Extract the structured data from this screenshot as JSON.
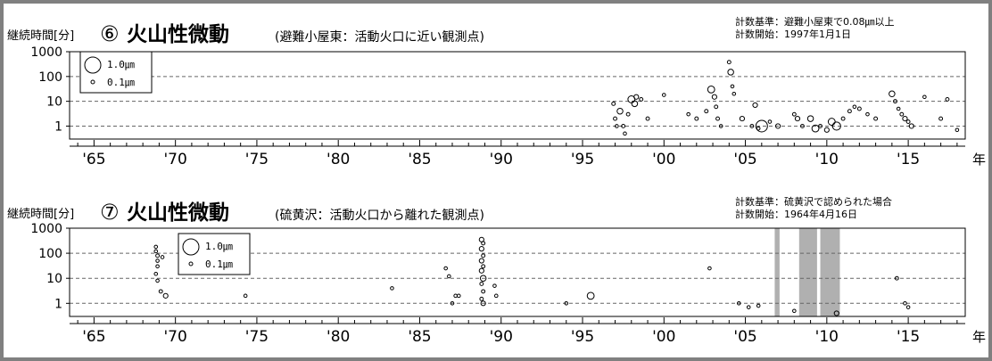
{
  "chart_data": [
    {
      "type": "scatter",
      "panel_number": "⑥",
      "title": "火山性微動",
      "subtitle": "(避難小屋東：活動火口に近い観測点)",
      "ylabel": "継続時間[分]",
      "xlabel_unit": "年",
      "note_criterion": "計数基準：避難小屋東で0.08㎛以上",
      "note_start": "計数開始：1997年1月1日",
      "legend": {
        "large": "1.0㎛",
        "small": "0.1㎛"
      },
      "yscale": "log",
      "ylim": [
        0.3,
        1000
      ],
      "yticks": [
        "1000",
        "100",
        "10",
        "1"
      ],
      "xlim": [
        1963.5,
        2018.5
      ],
      "xticks": [
        "'65",
        "'70",
        "'75",
        "'80",
        "'85",
        "'90",
        "'95",
        "'00",
        "'05",
        "'10",
        "'15"
      ],
      "grid": "dashed horizontal",
      "shaded_periods": [],
      "series": [
        {
          "marker": "circle",
          "size_meaning": "amplitude (μm)",
          "points": [
            {
              "x": 1996.9,
              "y": 8,
              "amp": 0.15
            },
            {
              "x": 1997.0,
              "y": 2,
              "amp": 0.15
            },
            {
              "x": 1997.1,
              "y": 1,
              "amp": 0.12
            },
            {
              "x": 1997.3,
              "y": 4,
              "amp": 0.25
            },
            {
              "x": 1997.5,
              "y": 1,
              "amp": 0.15
            },
            {
              "x": 1997.6,
              "y": 0.5,
              "amp": 0.12
            },
            {
              "x": 1997.8,
              "y": 3,
              "amp": 0.15
            },
            {
              "x": 1998.0,
              "y": 12,
              "amp": 0.3
            },
            {
              "x": 1998.2,
              "y": 8,
              "amp": 0.25
            },
            {
              "x": 1998.3,
              "y": 15,
              "amp": 0.2
            },
            {
              "x": 1998.6,
              "y": 12,
              "amp": 0.15
            },
            {
              "x": 1999.0,
              "y": 2,
              "amp": 0.15
            },
            {
              "x": 2000.0,
              "y": 18,
              "amp": 0.1
            },
            {
              "x": 2001.5,
              "y": 3,
              "amp": 0.12
            },
            {
              "x": 2002.0,
              "y": 2,
              "amp": 0.15
            },
            {
              "x": 2002.6,
              "y": 4,
              "amp": 0.15
            },
            {
              "x": 2002.9,
              "y": 30,
              "amp": 0.3
            },
            {
              "x": 2003.1,
              "y": 15,
              "amp": 0.2
            },
            {
              "x": 2003.2,
              "y": 6,
              "amp": 0.15
            },
            {
              "x": 2003.3,
              "y": 2,
              "amp": 0.15
            },
            {
              "x": 2003.5,
              "y": 1,
              "amp": 0.1
            },
            {
              "x": 2004.0,
              "y": 380,
              "amp": 0.15
            },
            {
              "x": 2004.1,
              "y": 150,
              "amp": 0.25
            },
            {
              "x": 2004.2,
              "y": 40,
              "amp": 0.12
            },
            {
              "x": 2004.3,
              "y": 20,
              "amp": 0.12
            },
            {
              "x": 2004.8,
              "y": 2,
              "amp": 0.2
            },
            {
              "x": 2005.4,
              "y": 1,
              "amp": 0.15
            },
            {
              "x": 2005.6,
              "y": 7,
              "amp": 0.2
            },
            {
              "x": 2005.8,
              "y": 0.8,
              "amp": 0.12
            },
            {
              "x": 2006.0,
              "y": 1,
              "amp": 0.5
            },
            {
              "x": 2006.5,
              "y": 1.5,
              "amp": 0.12
            },
            {
              "x": 2007.0,
              "y": 1,
              "amp": 0.2
            },
            {
              "x": 2008.0,
              "y": 3,
              "amp": 0.15
            },
            {
              "x": 2008.2,
              "y": 2,
              "amp": 0.2
            },
            {
              "x": 2008.5,
              "y": 1,
              "amp": 0.15
            },
            {
              "x": 2009.0,
              "y": 2,
              "amp": 0.25
            },
            {
              "x": 2009.3,
              "y": 0.8,
              "amp": 0.3
            },
            {
              "x": 2009.6,
              "y": 1,
              "amp": 0.15
            },
            {
              "x": 2010.0,
              "y": 0.7,
              "amp": 0.2
            },
            {
              "x": 2010.3,
              "y": 1.5,
              "amp": 0.3
            },
            {
              "x": 2010.6,
              "y": 1,
              "amp": 0.35
            },
            {
              "x": 2011.0,
              "y": 2,
              "amp": 0.15
            },
            {
              "x": 2011.4,
              "y": 4,
              "amp": 0.15
            },
            {
              "x": 2011.7,
              "y": 6,
              "amp": 0.12
            },
            {
              "x": 2012.0,
              "y": 5,
              "amp": 0.15
            },
            {
              "x": 2012.5,
              "y": 3,
              "amp": 0.12
            },
            {
              "x": 2013.0,
              "y": 2,
              "amp": 0.15
            },
            {
              "x": 2014.0,
              "y": 20,
              "amp": 0.25
            },
            {
              "x": 2014.2,
              "y": 10,
              "amp": 0.15
            },
            {
              "x": 2014.4,
              "y": 5,
              "amp": 0.12
            },
            {
              "x": 2014.6,
              "y": 3,
              "amp": 0.15
            },
            {
              "x": 2014.8,
              "y": 2,
              "amp": 0.2
            },
            {
              "x": 2015.0,
              "y": 1.5,
              "amp": 0.15
            },
            {
              "x": 2015.2,
              "y": 1,
              "amp": 0.2
            },
            {
              "x": 2016.0,
              "y": 15,
              "amp": 0.12
            },
            {
              "x": 2017.0,
              "y": 2,
              "amp": 0.15
            },
            {
              "x": 2017.4,
              "y": 12,
              "amp": 0.15
            },
            {
              "x": 2018.0,
              "y": 0.7,
              "amp": 0.1
            }
          ]
        }
      ]
    },
    {
      "type": "scatter",
      "panel_number": "⑦",
      "title": "火山性微動",
      "subtitle": "(硫黄沢：活動火口から離れた観測点)",
      "ylabel": "継続時間[分]",
      "xlabel_unit": "年",
      "note_criterion": "計数基準：硫黄沢で認められた場合",
      "note_start": "計数開始：1964年4月16日",
      "legend": {
        "large": "1.0㎛",
        "small": "0.1㎛"
      },
      "yscale": "log",
      "ylim": [
        0.3,
        1000
      ],
      "yticks": [
        "1000",
        "100",
        "10",
        "1"
      ],
      "xlim": [
        1963.5,
        2018.5
      ],
      "xticks": [
        "'65",
        "'70",
        "'75",
        "'80",
        "'85",
        "'90",
        "'95",
        "'00",
        "'05",
        "'10",
        "'15"
      ],
      "grid": "dashed horizontal",
      "shaded_periods": [
        [
          2006.8,
          2007.1
        ],
        [
          2008.3,
          2009.4
        ],
        [
          2009.6,
          2010.8
        ]
      ],
      "series": [
        {
          "marker": "circle",
          "size_meaning": "amplitude (μm)",
          "points": [
            {
              "x": 1968.8,
              "y": 180,
              "amp": 0.12
            },
            {
              "x": 1968.8,
              "y": 120,
              "amp": 0.12
            },
            {
              "x": 1968.9,
              "y": 80,
              "amp": 0.15
            },
            {
              "x": 1968.9,
              "y": 50,
              "amp": 0.12
            },
            {
              "x": 1968.9,
              "y": 30,
              "amp": 0.12
            },
            {
              "x": 1968.8,
              "y": 15,
              "amp": 0.12
            },
            {
              "x": 1968.9,
              "y": 8,
              "amp": 0.1
            },
            {
              "x": 1969.2,
              "y": 70,
              "amp": 0.12
            },
            {
              "x": 1969.1,
              "y": 3,
              "amp": 0.15
            },
            {
              "x": 1969.4,
              "y": 2,
              "amp": 0.2
            },
            {
              "x": 1974.3,
              "y": 2,
              "amp": 0.12
            },
            {
              "x": 1983.3,
              "y": 4,
              "amp": 0.1
            },
            {
              "x": 1986.6,
              "y": 25,
              "amp": 0.12
            },
            {
              "x": 1986.8,
              "y": 12,
              "amp": 0.1
            },
            {
              "x": 1987.2,
              "y": 2,
              "amp": 0.08
            },
            {
              "x": 1987.4,
              "y": 2,
              "amp": 0.08
            },
            {
              "x": 1987.0,
              "y": 1,
              "amp": 0.05
            },
            {
              "x": 1988.8,
              "y": 350,
              "amp": 0.2
            },
            {
              "x": 1988.9,
              "y": 250,
              "amp": 0.15
            },
            {
              "x": 1988.8,
              "y": 150,
              "amp": 0.2
            },
            {
              "x": 1988.9,
              "y": 80,
              "amp": 0.15
            },
            {
              "x": 1988.8,
              "y": 50,
              "amp": 0.2
            },
            {
              "x": 1988.9,
              "y": 30,
              "amp": 0.15
            },
            {
              "x": 1988.8,
              "y": 20,
              "amp": 0.2
            },
            {
              "x": 1988.9,
              "y": 10,
              "amp": 0.25
            },
            {
              "x": 1988.8,
              "y": 6,
              "amp": 0.15
            },
            {
              "x": 1988.9,
              "y": 3,
              "amp": 0.15
            },
            {
              "x": 1988.8,
              "y": 1.5,
              "amp": 0.15
            },
            {
              "x": 1988.9,
              "y": 1,
              "amp": 0.2
            },
            {
              "x": 1989.6,
              "y": 5,
              "amp": 0.05
            },
            {
              "x": 1989.7,
              "y": 2,
              "amp": 0.05
            },
            {
              "x": 1994.0,
              "y": 1,
              "amp": 0.05
            },
            {
              "x": 1995.5,
              "y": 2,
              "amp": 0.3
            },
            {
              "x": 2002.8,
              "y": 25,
              "amp": 0.08
            },
            {
              "x": 2004.6,
              "y": 1,
              "amp": 0.08
            },
            {
              "x": 2005.2,
              "y": 0.7,
              "amp": 0.1
            },
            {
              "x": 2005.8,
              "y": 0.8,
              "amp": 0.12
            },
            {
              "x": 2008.0,
              "y": 0.5,
              "amp": 0.08
            },
            {
              "x": 2010.6,
              "y": 0.4,
              "amp": 0.2
            },
            {
              "x": 2014.3,
              "y": 10,
              "amp": 0.15
            },
            {
              "x": 2014.8,
              "y": 1,
              "amp": 0.1
            },
            {
              "x": 2015.0,
              "y": 0.7,
              "amp": 0.1
            }
          ]
        }
      ]
    }
  ]
}
